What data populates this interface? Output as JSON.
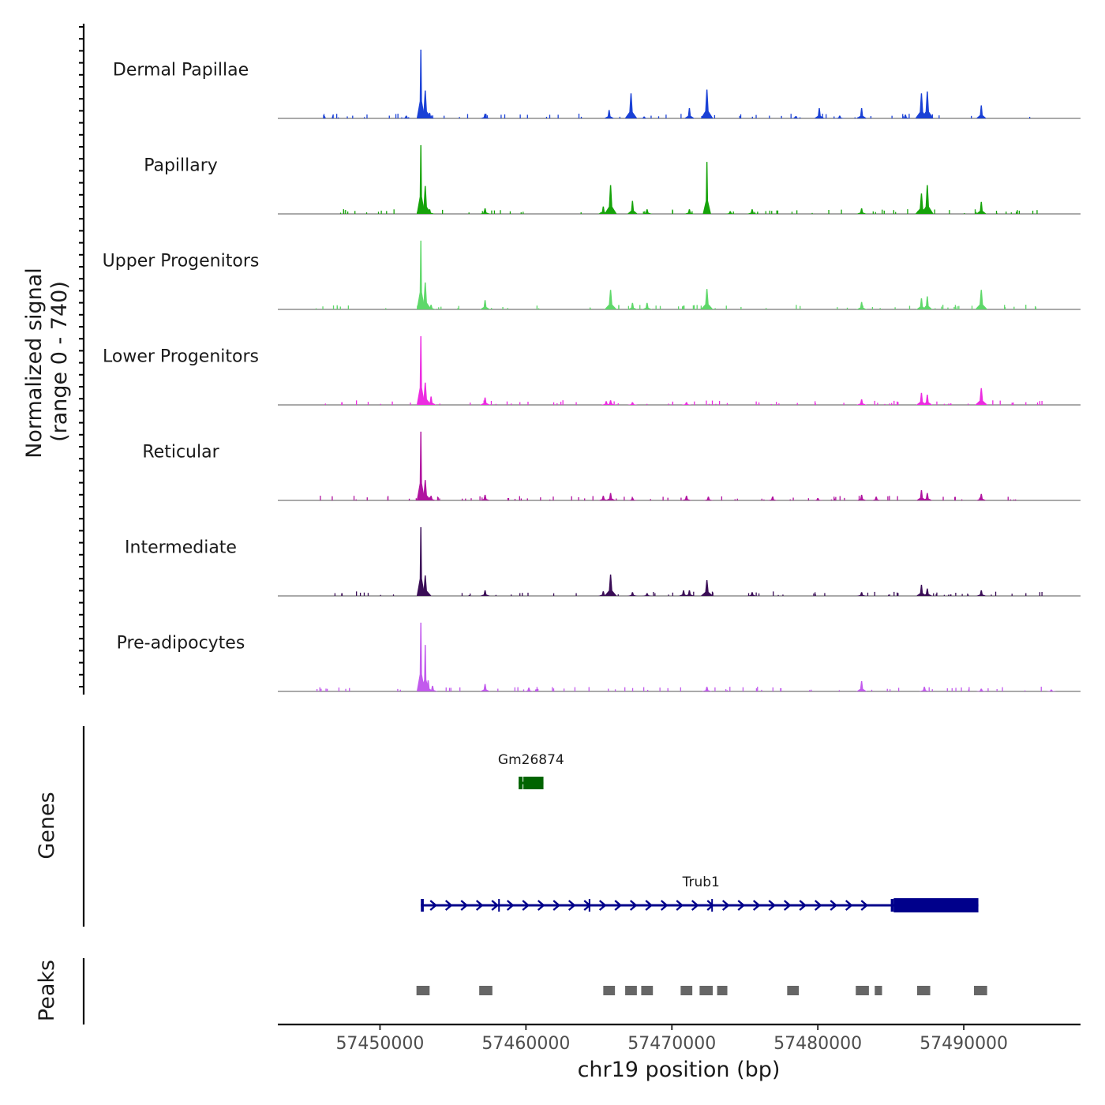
{
  "chart_data": {
    "type": "area",
    "title": "",
    "chromosome": "chr19",
    "xlabel": "chr19 position (bp)",
    "ylabel_line1": "Normalized signal",
    "ylabel_line2": "(range 0 - 740)",
    "signal_range": [
      0,
      740
    ],
    "xlim": [
      57443000,
      57498000
    ],
    "x_ticks": [
      57450000,
      57460000,
      57470000,
      57480000,
      57490000
    ],
    "x_tick_labels": [
      "57450000",
      "57460000",
      "57470000",
      "57480000",
      "57490000"
    ],
    "tracks": [
      {
        "name": "Dermal Papillae",
        "color": "#1a41d6",
        "peaks": [
          [
            57452800,
            740
          ],
          [
            57453100,
            300
          ],
          [
            57453400,
            60
          ],
          [
            57451800,
            30
          ],
          [
            57457200,
            50
          ],
          [
            57465700,
            90
          ],
          [
            57467200,
            270
          ],
          [
            57468100,
            20
          ],
          [
            57471200,
            110
          ],
          [
            57472400,
            310
          ],
          [
            57478500,
            25
          ],
          [
            57480100,
            110
          ],
          [
            57481500,
            30
          ],
          [
            57483000,
            110
          ],
          [
            57486000,
            40
          ],
          [
            57487100,
            270
          ],
          [
            57487500,
            290
          ],
          [
            57491200,
            140
          ]
        ]
      },
      {
        "name": "Papillary",
        "color": "#16a30a",
        "peaks": [
          [
            57452800,
            740
          ],
          [
            57453100,
            300
          ],
          [
            57453400,
            50
          ],
          [
            57457200,
            60
          ],
          [
            57465300,
            80
          ],
          [
            57465800,
            310
          ],
          [
            57467300,
            140
          ],
          [
            57468300,
            50
          ],
          [
            57471200,
            50
          ],
          [
            57472400,
            560
          ],
          [
            57474000,
            30
          ],
          [
            57475500,
            50
          ],
          [
            57483000,
            60
          ],
          [
            57487100,
            220
          ],
          [
            57487500,
            310
          ],
          [
            57491200,
            130
          ]
        ]
      },
      {
        "name": "Upper Progenitors",
        "color": "#5fd86a",
        "peaks": [
          [
            57452800,
            740
          ],
          [
            57453100,
            290
          ],
          [
            57453500,
            50
          ],
          [
            57457200,
            100
          ],
          [
            57465800,
            210
          ],
          [
            57467300,
            70
          ],
          [
            57468300,
            70
          ],
          [
            57472400,
            220
          ],
          [
            57483000,
            80
          ],
          [
            57487100,
            120
          ],
          [
            57487500,
            140
          ],
          [
            57491200,
            210
          ]
        ]
      },
      {
        "name": "Lower Progenitors",
        "color": "#ec2ce1",
        "peaks": [
          [
            57452800,
            740
          ],
          [
            57453100,
            240
          ],
          [
            57453500,
            90
          ],
          [
            57457200,
            80
          ],
          [
            57465500,
            40
          ],
          [
            57465800,
            50
          ],
          [
            57467300,
            30
          ],
          [
            57471000,
            30
          ],
          [
            57483000,
            60
          ],
          [
            57487100,
            130
          ],
          [
            57487500,
            110
          ],
          [
            57491200,
            180
          ]
        ]
      },
      {
        "name": "Reticular",
        "color": "#b0149f",
        "peaks": [
          [
            57452800,
            740
          ],
          [
            57453100,
            220
          ],
          [
            57453500,
            50
          ],
          [
            57457200,
            60
          ],
          [
            57465300,
            50
          ],
          [
            57465800,
            80
          ],
          [
            57467300,
            30
          ],
          [
            57471000,
            50
          ],
          [
            57472500,
            40
          ],
          [
            57476900,
            40
          ],
          [
            57480000,
            25
          ],
          [
            57483000,
            60
          ],
          [
            57484000,
            40
          ],
          [
            57487100,
            110
          ],
          [
            57487500,
            80
          ],
          [
            57491200,
            70
          ]
        ]
      },
      {
        "name": "Intermediate",
        "color": "#3a0d56",
        "peaks": [
          [
            57452800,
            740
          ],
          [
            57453100,
            220
          ],
          [
            57457200,
            60
          ],
          [
            57465300,
            50
          ],
          [
            57465800,
            230
          ],
          [
            57467300,
            40
          ],
          [
            57468300,
            30
          ],
          [
            57470800,
            60
          ],
          [
            57471200,
            60
          ],
          [
            57472400,
            170
          ],
          [
            57475500,
            40
          ],
          [
            57483000,
            40
          ],
          [
            57487100,
            120
          ],
          [
            57487500,
            80
          ],
          [
            57491200,
            60
          ]
        ]
      },
      {
        "name": "Pre-adipocytes",
        "color": "#c25aed",
        "peaks": [
          [
            57452800,
            740
          ],
          [
            57453100,
            500
          ],
          [
            57453300,
            120
          ],
          [
            57453600,
            60
          ],
          [
            57457200,
            80
          ],
          [
            57460200,
            40
          ],
          [
            57472400,
            50
          ],
          [
            57483000,
            110
          ],
          [
            57487300,
            50
          ],
          [
            57491200,
            30
          ],
          [
            57496000,
            20
          ]
        ]
      }
    ],
    "genes_label": "Genes",
    "genes": [
      {
        "name": "Gm26874",
        "color": "#006400",
        "start": 57459500,
        "end": 57461200,
        "row": 0
      },
      {
        "name": "Trub1",
        "color": "#00008b",
        "start": 57452800,
        "end": 57491000,
        "strand": "+",
        "row": 1,
        "exons": [
          [
            57452800,
            57453000
          ],
          [
            57458100,
            57458200
          ],
          [
            57464300,
            57464400
          ],
          [
            57472700,
            57472800
          ],
          [
            57485000,
            57485200
          ],
          [
            57485200,
            57491000
          ]
        ]
      }
    ],
    "peaks_label": "Peaks",
    "peak_regions": [
      [
        57452500,
        57453400
      ],
      [
        57456800,
        57457700
      ],
      [
        57465300,
        57466100
      ],
      [
        57466800,
        57467600
      ],
      [
        57467900,
        57468700
      ],
      [
        57470600,
        57471400
      ],
      [
        57471900,
        57472800
      ],
      [
        57473100,
        57473800
      ],
      [
        57477900,
        57478700
      ],
      [
        57482600,
        57483500
      ],
      [
        57483900,
        57484400
      ],
      [
        57486800,
        57487700
      ],
      [
        57490700,
        57491600
      ]
    ]
  }
}
